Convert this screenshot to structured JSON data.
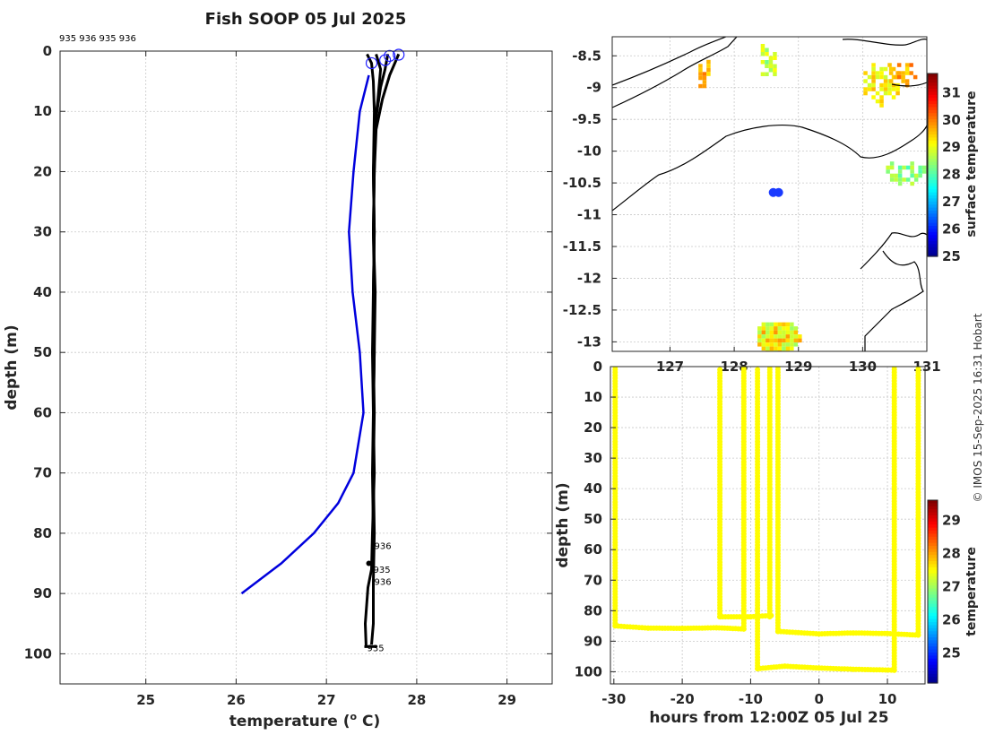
{
  "title": "Fish SOOP 05 Jul 2025",
  "credit": "© IMOS 15-Sep-2025 16:31 Hobart",
  "chart_data": [
    {
      "id": "profile",
      "type": "line",
      "xlabel": "temperature (",
      "xlabel_sup": "o",
      "xlabel_end": " C)",
      "ylabel": "depth (m)",
      "xlim": [
        24.05,
        29.5
      ],
      "ylim": [
        0,
        105
      ],
      "y_reversed": true,
      "xticks": [
        25,
        26,
        27,
        28,
        29
      ],
      "yticks": [
        0,
        10,
        20,
        30,
        40,
        50,
        60,
        70,
        80,
        90,
        100
      ],
      "grid": true,
      "top_labels": "935 936 935 936",
      "series": [
        {
          "color": "#0000dd",
          "points": [
            [
              27.47,
              4
            ],
            [
              27.37,
              10
            ],
            [
              27.3,
              20
            ],
            [
              27.25,
              30
            ],
            [
              27.29,
              40
            ],
            [
              27.37,
              50
            ],
            [
              27.41,
              60
            ],
            [
              27.3,
              70
            ],
            [
              27.13,
              75
            ],
            [
              26.86,
              80
            ],
            [
              26.5,
              85
            ],
            [
              26.06,
              90
            ]
          ]
        },
        {
          "color": "#000000",
          "points": [
            [
              27.45,
              0.5
            ],
            [
              27.5,
              2
            ],
            [
              27.52,
              5
            ],
            [
              27.53,
              10
            ],
            [
              27.52,
              20
            ],
            [
              27.53,
              30
            ],
            [
              27.52,
              40
            ],
            [
              27.53,
              50
            ],
            [
              27.52,
              60
            ],
            [
              27.52,
              70
            ],
            [
              27.52,
              80
            ],
            [
              27.51,
              85
            ]
          ]
        },
        {
          "color": "#000000",
          "points": [
            [
              27.55,
              0.5
            ],
            [
              27.6,
              3
            ],
            [
              27.57,
              8
            ],
            [
              27.54,
              12
            ],
            [
              27.53,
              20
            ],
            [
              27.52,
              30
            ],
            [
              27.54,
              40
            ],
            [
              27.53,
              50
            ],
            [
              27.52,
              60
            ],
            [
              27.51,
              70
            ],
            [
              27.52,
              80
            ],
            [
              27.52,
              83
            ]
          ]
        },
        {
          "color": "#000000",
          "points": [
            [
              27.68,
              0.5
            ],
            [
              27.65,
              3
            ],
            [
              27.6,
              6
            ],
            [
              27.55,
              11
            ],
            [
              27.52,
              20
            ],
            [
              27.53,
              30
            ],
            [
              27.52,
              40
            ],
            [
              27.51,
              50
            ],
            [
              27.52,
              60
            ],
            [
              27.53,
              70
            ],
            [
              27.51,
              80
            ],
            [
              27.5,
              86
            ],
            [
              27.46,
              89
            ],
            [
              27.43,
              95
            ],
            [
              27.44,
              99
            ]
          ]
        },
        {
          "color": "#000000",
          "points": [
            [
              27.8,
              0.5
            ],
            [
              27.7,
              4
            ],
            [
              27.62,
              8
            ],
            [
              27.55,
              13
            ],
            [
              27.53,
              20
            ],
            [
              27.52,
              30
            ],
            [
              27.53,
              40
            ],
            [
              27.52,
              50
            ],
            [
              27.53,
              60
            ],
            [
              27.52,
              70
            ],
            [
              27.53,
              80
            ],
            [
              27.52,
              88
            ],
            [
              27.52,
              95
            ],
            [
              27.5,
              98.5
            ]
          ]
        }
      ],
      "start_markers": [
        [
          27.5,
          2
        ],
        [
          27.65,
          1.5
        ],
        [
          27.7,
          0.8
        ],
        [
          27.8,
          0.6
        ]
      ],
      "end_labels": [
        {
          "text": "936",
          "x": 27.52,
          "y": 82
        },
        {
          "text": "935",
          "x": 27.51,
          "y": 86
        },
        {
          "text": "936",
          "x": 27.52,
          "y": 88
        },
        {
          "text": "935",
          "x": 27.44,
          "y": 99
        }
      ]
    },
    {
      "id": "map",
      "type": "heatmap",
      "xlim": [
        126.1,
        131.0
      ],
      "ylim": [
        -13.15,
        -8.2
      ],
      "xticks": [
        127,
        128,
        129,
        130,
        131
      ],
      "yticks": [
        -8.5,
        -9,
        -9.5,
        -10,
        -10.5,
        -11,
        -11.5,
        -12,
        -12.5,
        -13
      ],
      "ytick_labels": [
        "-8.5",
        "-9",
        "-9.5",
        "-10",
        "-10.5",
        "-11",
        "-11.5",
        "-12",
        "-12.5",
        "-13"
      ],
      "grid": true,
      "colorbar_label": "surface temperature",
      "colorbar_range": [
        25,
        31.7
      ],
      "colorbar_ticks": [
        25,
        26,
        27,
        28,
        29,
        30,
        31
      ],
      "ship_position": [
        128.65,
        -10.65
      ],
      "sst_patches": [
        {
          "cx": 128.65,
          "cy": -12.9,
          "rx": 0.35,
          "ry": 0.27,
          "value": 29.2
        },
        {
          "cx": 128.5,
          "cy": -8.55,
          "rx": 0.15,
          "ry": 0.3,
          "value": 28.6
        },
        {
          "cx": 127.5,
          "cy": -8.75,
          "rx": 0.12,
          "ry": 0.25,
          "value": 29.4
        },
        {
          "cx": 130.25,
          "cy": -8.9,
          "rx": 0.3,
          "ry": 0.35,
          "value": 29.0
        },
        {
          "cx": 130.6,
          "cy": -8.75,
          "rx": 0.25,
          "ry": 0.2,
          "value": 29.5
        },
        {
          "cx": 130.65,
          "cy": -10.3,
          "rx": 0.35,
          "ry": 0.2,
          "value": 28.2
        }
      ]
    },
    {
      "id": "timeseries",
      "type": "scatter",
      "xlabel": "hours from 12:00Z 05 Jul 25",
      "ylabel": "depth (m)",
      "xlim": [
        -30.5,
        15.5
      ],
      "ylim": [
        0,
        104
      ],
      "y_reversed": true,
      "xticks": [
        -30,
        -20,
        -10,
        0,
        10
      ],
      "yticks": [
        0,
        10,
        20,
        30,
        40,
        50,
        60,
        70,
        80,
        90,
        100
      ],
      "grid": true,
      "colorbar_label": "temperature",
      "colorbar_range": [
        24.1,
        29.6
      ],
      "colorbar_ticks": [
        25,
        26,
        27,
        28,
        29
      ],
      "point_value": 27.55,
      "casts": [
        {
          "points": [
            [
              -29.8,
              0
            ],
            [
              -29.8,
              85
            ],
            [
              -25,
              85.7
            ],
            [
              -20,
              85.8
            ],
            [
              -15,
              85.6
            ],
            [
              -11,
              86
            ]
          ]
        },
        {
          "points": [
            [
              -11,
              0
            ],
            [
              -11,
              86
            ]
          ]
        },
        {
          "points": [
            [
              -14.5,
              1
            ],
            [
              -14.5,
              82
            ],
            [
              -10,
              82
            ],
            [
              -7,
              81.6
            ]
          ]
        },
        {
          "points": [
            [
              -7.2,
              0
            ],
            [
              -7.2,
              82
            ]
          ]
        },
        {
          "points": [
            [
              -9,
              1
            ],
            [
              -9,
              99
            ],
            [
              -5,
              98.2
            ],
            [
              0,
              98.8
            ],
            [
              5,
              99.2
            ],
            [
              11,
              99.5
            ]
          ]
        },
        {
          "points": [
            [
              -6,
              0
            ],
            [
              -6,
              86.8
            ],
            [
              0,
              87.6
            ],
            [
              5,
              87.3
            ],
            [
              10,
              87.5
            ],
            [
              14.5,
              88
            ]
          ]
        },
        {
          "points": [
            [
              11,
              0
            ],
            [
              11,
              99.5
            ]
          ]
        },
        {
          "points": [
            [
              14.5,
              0
            ],
            [
              14.5,
              88
            ]
          ]
        }
      ]
    }
  ]
}
